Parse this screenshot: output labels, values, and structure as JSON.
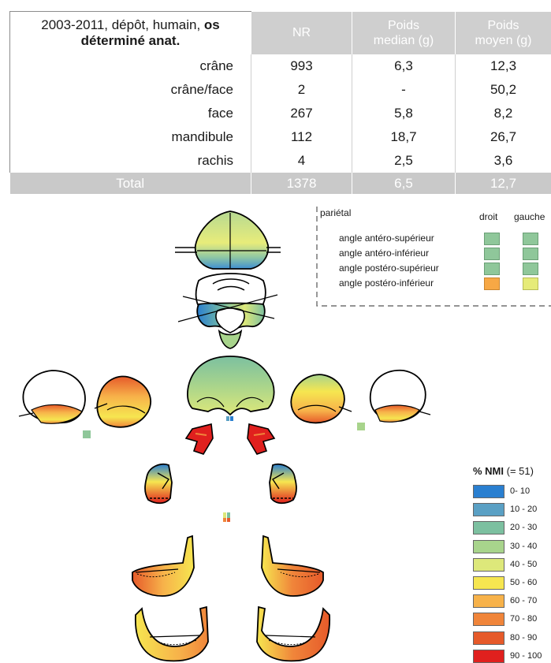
{
  "table": {
    "title_normal": "2003-2011, dépôt, humain, ",
    "title_bold_1": "os",
    "title_bold_2": "déterminé anat.",
    "headers": [
      "NR",
      "Poids median (g)",
      "Poids moyen (g)"
    ],
    "header_lines": [
      [
        "NR"
      ],
      [
        "Poids",
        "median (g)"
      ],
      [
        "Poids",
        "moyen (g)"
      ]
    ],
    "rows": [
      {
        "label": "crâne",
        "nr": "993",
        "median": "6,3",
        "moyen": "12,3"
      },
      {
        "label": "crâne/face",
        "nr": "2",
        "median": "-",
        "moyen": "50,2"
      },
      {
        "label": "face",
        "nr": "267",
        "median": "5,8",
        "moyen": "8,2"
      },
      {
        "label": "mandibule",
        "nr": "112",
        "median": "18,7",
        "moyen": "26,7"
      },
      {
        "label": "rachis",
        "nr": "4",
        "median": "2,5",
        "moyen": "3,6"
      }
    ],
    "total": {
      "label": "Total",
      "nr": "1378",
      "median": "6,5",
      "moyen": "12,7"
    }
  },
  "parietal_legend": {
    "title": "pariétal",
    "col_right": "droit",
    "col_left": "gauche",
    "items": [
      {
        "label": "angle antéro-supérieur",
        "droit": "#8fc79a",
        "gauche": "#8fc79a"
      },
      {
        "label": "angle antéro-inférieur",
        "droit": "#8fc79a",
        "gauche": "#8fc79a"
      },
      {
        "label": "angle postéro-supérieur",
        "droit": "#8fc79a",
        "gauche": "#8fc79a"
      },
      {
        "label": "angle postéro-inférieur",
        "droit": "#f7a845",
        "gauche": "#e6eb78"
      }
    ]
  },
  "nmi_legend": {
    "title_bold": "% NMI",
    "title_rest": " (= 51)",
    "bins": [
      {
        "label": "0- 10",
        "color": "#2a7fd0"
      },
      {
        "label": "10 - 20",
        "color": "#5aa0c4"
      },
      {
        "label": "20 - 30",
        "color": "#7cc0a0"
      },
      {
        "label": "30 - 40",
        "color": "#a8d48c"
      },
      {
        "label": "40 - 50",
        "color": "#dde87a"
      },
      {
        "label": "50 - 60",
        "color": "#f6e650"
      },
      {
        "label": "60 - 70",
        "color": "#f7b24a"
      },
      {
        "label": "70 - 80",
        "color": "#f0853a"
      },
      {
        "label": "80 - 90",
        "color": "#e65a2a"
      },
      {
        "label": "90 - 100",
        "color": "#e0201e"
      }
    ]
  }
}
